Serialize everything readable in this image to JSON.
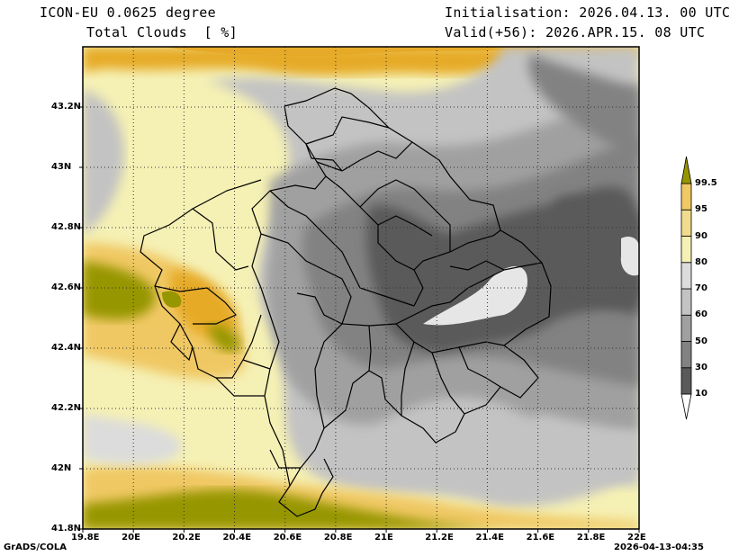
{
  "header": {
    "model": "ICON-EU 0.0625 degree",
    "variable": "Total Clouds  [ %]",
    "init": "Initialisation: 2026.04.13. 00 UTC",
    "valid": "Valid(+56): 2026.APR.15. 08 UTC"
  },
  "footer": {
    "software": "GrADS/COLA",
    "timestamp": "2026-04-13-04:35"
  },
  "map": {
    "lon_range": [
      19.8,
      22.0
    ],
    "lat_range": [
      41.8,
      43.4
    ],
    "lon_ticks": [
      "19.8E",
      "20E",
      "20.2E",
      "20.4E",
      "20.6E",
      "20.8E",
      "21E",
      "21.2E",
      "21.4E",
      "21.6E",
      "21.8E",
      "22E"
    ],
    "lat_ticks": [
      "41.8N",
      "42N",
      "42.2N",
      "42.4N",
      "42.6N",
      "42.8N",
      "43N",
      "43.2N"
    ],
    "grid": true
  },
  "colorbar": {
    "labels": [
      "10",
      "30",
      "50",
      "60",
      "70",
      "80",
      "90",
      "95",
      "99.5"
    ],
    "colors": [
      "#ffffff",
      "#5a5a5a",
      "#828282",
      "#a0a0a0",
      "#c3c3c3",
      "#dcdcdc",
      "#f5f0b4",
      "#f0dc8c",
      "#f0c864",
      "#e6aa28",
      "#969600"
    ]
  }
}
